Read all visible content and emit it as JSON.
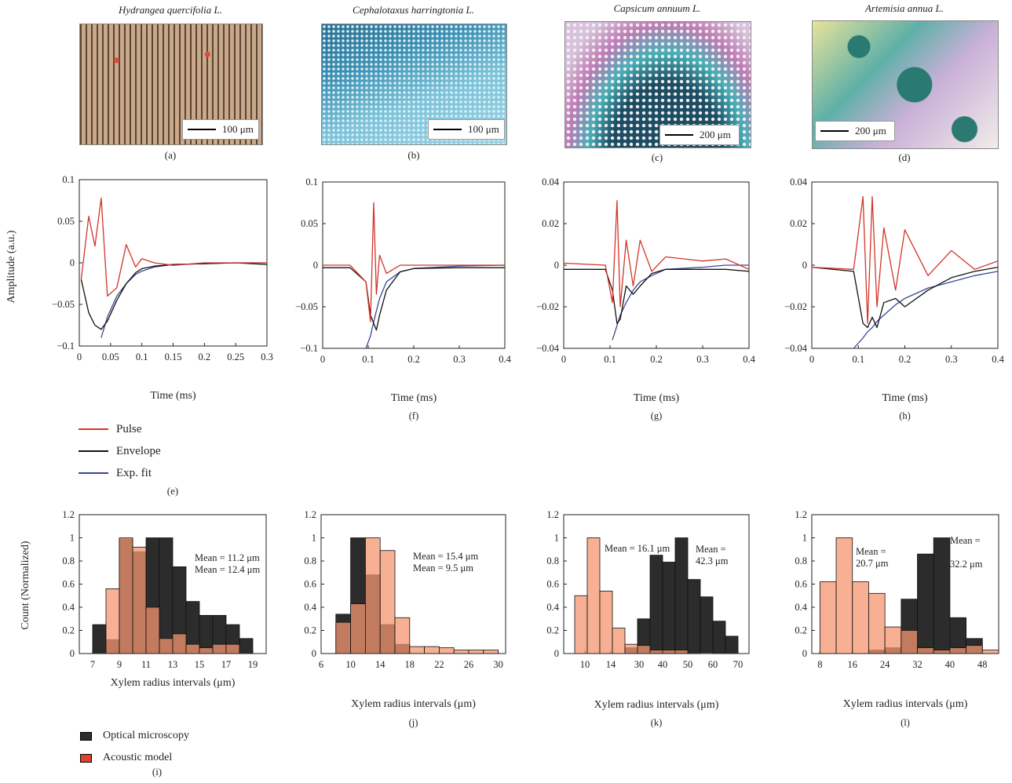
{
  "colors": {
    "pulse": "#d2352b",
    "envelope": "#111111",
    "fit": "#3b4894",
    "optical": "#2c2c2c",
    "acoustic": "#f4956f"
  },
  "micro": [
    {
      "title": "Hydrangea quercifolia L.",
      "scale": "100 μm",
      "caption": "(a)",
      "palette": [
        "#8a6a4a",
        "#c9a88b",
        "#e9d9c9",
        "#d84c3a",
        "#5a4530"
      ]
    },
    {
      "title": "Cephalotaxus harringtonia L.",
      "scale": "100 μm",
      "caption": "(b)",
      "palette": [
        "#3d8fb3",
        "#9fd3e6",
        "#d9f1f7",
        "#2b6f93",
        "#7cc2d8"
      ]
    },
    {
      "title": "Capsicum annuum L.",
      "scale": "200 μm",
      "caption": "(c)",
      "palette": [
        "#1d4d63",
        "#47b0b8",
        "#d7c1db",
        "#f2f2f2",
        "#c07bb6"
      ]
    },
    {
      "title": "Artemisia annua L.",
      "scale": "200 μm",
      "caption": "(d)",
      "palette": [
        "#f1ece9",
        "#c9b0d8",
        "#5fb0a8",
        "#e8e39a",
        "#2b7a72"
      ]
    }
  ],
  "waveforms": {
    "ylabel": "Amplitude (a.u.)",
    "xlabel": "Time (ms)",
    "legend": {
      "pulse": "Pulse",
      "envelope": "Envelope",
      "fit": "Exp. fit"
    },
    "legend_caption": "(e)",
    "panels": [
      {
        "caption": "",
        "xlim": [
          0,
          0.3
        ],
        "ylim": [
          -0.1,
          0.1
        ],
        "xticks": [
          "0",
          "0.05",
          "0.1",
          "0.15",
          "0.2",
          "0.25",
          "0.3"
        ],
        "yticks": [
          "0.1",
          "0.05",
          "0",
          "−0.05",
          "−0.1"
        ]
      },
      {
        "caption": "(f)",
        "xlim": [
          0,
          0.4
        ],
        "ylim": [
          -0.1,
          0.1
        ],
        "xticks": [
          "0",
          "0.1",
          "0.2",
          "0.3",
          "0.4"
        ],
        "yticks": [
          "0.1",
          "0.05",
          "0",
          "−0.05",
          "−0.1"
        ]
      },
      {
        "caption": "(g)",
        "xlim": [
          0,
          0.4
        ],
        "ylim": [
          -0.04,
          0.04
        ],
        "xticks": [
          "0",
          "0.1",
          "0.2",
          "0.3",
          "0.4"
        ],
        "yticks": [
          "0.04",
          "0.02",
          "0",
          "−0.02",
          "−0.04"
        ]
      },
      {
        "caption": "(h)",
        "xlim": [
          0,
          0.4
        ],
        "ylim": [
          -0.04,
          0.04
        ],
        "xticks": [
          "0",
          "0.1",
          "0.2",
          "0.3",
          "0.4"
        ],
        "yticks": [
          "0.04",
          "0.02",
          "0",
          "−0.02",
          "−0.04"
        ]
      }
    ]
  },
  "histograms": {
    "ylabel": "Count (Normalized)",
    "xlabel": "Xylem radius intervals (μm)",
    "legend": {
      "optical": "Optical microscopy",
      "acoustic": "Acoustic model"
    },
    "legend_caption": "(i)"
  },
  "chart_data": [
    {
      "type": "line",
      "panel": "e",
      "x": [
        0.003,
        0.015,
        0.025,
        0.035,
        0.045,
        0.06,
        0.075,
        0.09,
        0.1,
        0.12,
        0.15,
        0.2,
        0.25,
        0.3
      ],
      "series": [
        {
          "name": "Pulse",
          "values": [
            -0.02,
            0.056,
            0.02,
            0.078,
            -0.04,
            -0.03,
            0.022,
            -0.005,
            0.005,
            0.0,
            -0.003,
            0.0,
            0.0,
            0.0
          ]
        },
        {
          "name": "Envelope",
          "values": [
            -0.02,
            -0.06,
            -0.075,
            -0.08,
            -0.07,
            -0.045,
            -0.025,
            -0.012,
            -0.007,
            -0.004,
            -0.002,
            -0.001,
            0.0,
            -0.002
          ]
        },
        {
          "name": "Exp. fit",
          "values": [
            null,
            null,
            null,
            -0.09,
            -0.065,
            -0.04,
            -0.025,
            -0.014,
            -0.01,
            -0.005,
            -0.002,
            -0.001,
            0.0,
            0.0
          ]
        }
      ],
      "xlim": [
        0,
        0.3
      ],
      "ylim": [
        -0.1,
        0.1
      ]
    },
    {
      "type": "line",
      "panel": "f",
      "x": [
        0.0,
        0.06,
        0.095,
        0.105,
        0.112,
        0.118,
        0.125,
        0.14,
        0.17,
        0.2,
        0.3,
        0.4
      ],
      "series": [
        {
          "name": "Pulse",
          "values": [
            0.0,
            0.0,
            -0.02,
            -0.068,
            0.075,
            -0.035,
            0.012,
            -0.01,
            0.0,
            0.0,
            0.0,
            0.0
          ]
        },
        {
          "name": "Envelope",
          "values": [
            -0.003,
            -0.003,
            -0.02,
            -0.06,
            -0.07,
            -0.078,
            -0.06,
            -0.03,
            -0.008,
            -0.004,
            -0.003,
            -0.003
          ]
        },
        {
          "name": "Exp. fit",
          "values": [
            null,
            null,
            -0.1,
            -0.085,
            -0.068,
            -0.055,
            -0.04,
            -0.02,
            -0.008,
            -0.004,
            -0.001,
            0.0
          ]
        }
      ],
      "xlim": [
        0,
        0.4
      ],
      "ylim": [
        -0.1,
        0.1
      ]
    },
    {
      "type": "line",
      "panel": "g",
      "x": [
        0.0,
        0.09,
        0.105,
        0.115,
        0.122,
        0.135,
        0.15,
        0.165,
        0.19,
        0.22,
        0.3,
        0.35,
        0.4
      ],
      "series": [
        {
          "name": "Pulse",
          "values": [
            0.001,
            0.0,
            -0.018,
            0.031,
            -0.02,
            0.012,
            -0.01,
            0.012,
            -0.003,
            0.004,
            0.002,
            0.003,
            -0.002
          ]
        },
        {
          "name": "Envelope",
          "values": [
            -0.002,
            -0.002,
            -0.012,
            -0.028,
            -0.026,
            -0.01,
            -0.014,
            -0.01,
            -0.004,
            -0.002,
            -0.002,
            -0.002,
            -0.003
          ]
        },
        {
          "name": "Exp. fit",
          "values": [
            null,
            null,
            -0.036,
            -0.029,
            -0.024,
            -0.018,
            -0.012,
            -0.008,
            -0.005,
            -0.002,
            -0.001,
            0.0,
            0.0
          ]
        }
      ],
      "xlim": [
        0,
        0.4
      ],
      "ylim": [
        -0.04,
        0.04
      ]
    },
    {
      "type": "line",
      "panel": "h",
      "x": [
        0.0,
        0.09,
        0.11,
        0.12,
        0.13,
        0.14,
        0.155,
        0.18,
        0.2,
        0.25,
        0.3,
        0.35,
        0.4
      ],
      "series": [
        {
          "name": "Pulse",
          "values": [
            -0.001,
            -0.002,
            0.033,
            -0.028,
            0.033,
            -0.02,
            0.018,
            -0.012,
            0.017,
            -0.005,
            0.007,
            -0.002,
            0.002
          ]
        },
        {
          "name": "Envelope",
          "values": [
            -0.001,
            -0.003,
            -0.028,
            -0.03,
            -0.025,
            -0.03,
            -0.018,
            -0.016,
            -0.02,
            -0.012,
            -0.006,
            -0.003,
            -0.001
          ]
        },
        {
          "name": "Exp. fit",
          "values": [
            null,
            -0.04,
            -0.035,
            -0.032,
            -0.03,
            -0.027,
            -0.024,
            -0.019,
            -0.016,
            -0.011,
            -0.008,
            -0.005,
            -0.003
          ]
        }
      ],
      "xlim": [
        0,
        0.4
      ],
      "ylim": [
        -0.04,
        0.04
      ]
    },
    {
      "type": "bar",
      "panel": "i",
      "xlim": [
        6,
        20
      ],
      "ylim": [
        0,
        1.2
      ],
      "xticks": [
        7,
        9,
        11,
        13,
        15,
        17,
        19
      ],
      "yticks": [
        0,
        0.2,
        0.4,
        0.6,
        0.8,
        1,
        1.2
      ],
      "mean_acoustic": "Mean = 11.2 μm",
      "mean_optical": "Mean = 12.4 μm",
      "optical": {
        "x": [
          7.5,
          8.5,
          9.5,
          10.5,
          11.5,
          12.5,
          13.5,
          14.5,
          15.5,
          16.5,
          17.5,
          18.5
        ],
        "width": 1,
        "values": [
          0.25,
          0.12,
          0.99,
          0.88,
          1.0,
          1.0,
          0.75,
          0.45,
          0.33,
          0.33,
          0.25,
          0.13
        ]
      },
      "acoustic": {
        "x": [
          8.5,
          9.5,
          10.5,
          11.5,
          12.5,
          13.5,
          14.5,
          15.5,
          16.5,
          17.5
        ],
        "width": 1,
        "values": [
          0.56,
          1.0,
          0.92,
          0.4,
          0.13,
          0.17,
          0.08,
          0.05,
          0.08,
          0.08
        ]
      }
    },
    {
      "type": "bar",
      "panel": "j",
      "xlim": [
        6,
        31
      ],
      "ylim": [
        0,
        1.2
      ],
      "xticks": [
        6,
        10,
        14,
        18,
        22,
        26,
        30
      ],
      "yticks": [
        0,
        0.2,
        0.4,
        0.6,
        0.8,
        1,
        1.2
      ],
      "mean_acoustic": "Mean = 15.4 μm",
      "mean_optical": "Mean = 9.5 μm",
      "optical": {
        "x": [
          9,
          11,
          13,
          15,
          17
        ],
        "width": 2,
        "values": [
          0.34,
          1.0,
          0.68,
          0.25,
          0.08
        ]
      },
      "acoustic": {
        "x": [
          9,
          11,
          13,
          15,
          17,
          19,
          21,
          23,
          25,
          27,
          29
        ],
        "width": 2,
        "values": [
          0.27,
          0.43,
          1.0,
          0.89,
          0.31,
          0.06,
          0.06,
          0.05,
          0.03,
          0.03,
          0.03
        ]
      }
    },
    {
      "type": "bar",
      "panel": "k",
      "xticks": [
        "10",
        "14",
        "30",
        "40",
        "50",
        "60",
        "70"
      ],
      "ylim": [
        0,
        1.2
      ],
      "yticks": [
        0,
        0.2,
        0.4,
        0.6,
        0.8,
        1,
        1.2
      ],
      "mean_acoustic": "Mean = 16.1 μm",
      "mean_optical_line1": "Mean =",
      "mean_optical_line2": "42.3 μm",
      "bins": 13,
      "optical": {
        "values": [
          0,
          0,
          0,
          0,
          0.05,
          0.3,
          0.85,
          0.79,
          1.0,
          0.64,
          0.49,
          0.28,
          0.15
        ]
      },
      "acoustic": {
        "values": [
          0.5,
          1.0,
          0.54,
          0.22,
          0.08,
          0.07,
          0.03,
          0.03,
          0.03,
          0,
          0.01,
          0,
          0
        ]
      }
    },
    {
      "type": "bar",
      "panel": "l",
      "xlim": [
        6,
        52
      ],
      "ylim": [
        0,
        1.2
      ],
      "xticks": [
        8,
        16,
        24,
        32,
        40,
        48
      ],
      "yticks": [
        0,
        0.2,
        0.4,
        0.6,
        0.8,
        1,
        1.2
      ],
      "mean_acoustic_line1": "Mean =",
      "mean_acoustic_line2": "20.7 μm",
      "mean_optical_line1": "Mean =",
      "mean_optical_line2": "32.2 μm",
      "optical": {
        "x": [
          22,
          26,
          30,
          34,
          38,
          42,
          46
        ],
        "width": 4,
        "values": [
          0.03,
          0.05,
          0.47,
          0.86,
          1.0,
          0.31,
          0.13
        ]
      },
      "acoustic": {
        "x": [
          10,
          14,
          18,
          22,
          26,
          30,
          34,
          38,
          42,
          46,
          50
        ],
        "width": 4,
        "values": [
          0.62,
          1.0,
          0.62,
          0.52,
          0.23,
          0.2,
          0.05,
          0.03,
          0.05,
          0.07,
          0.03
        ]
      }
    }
  ]
}
